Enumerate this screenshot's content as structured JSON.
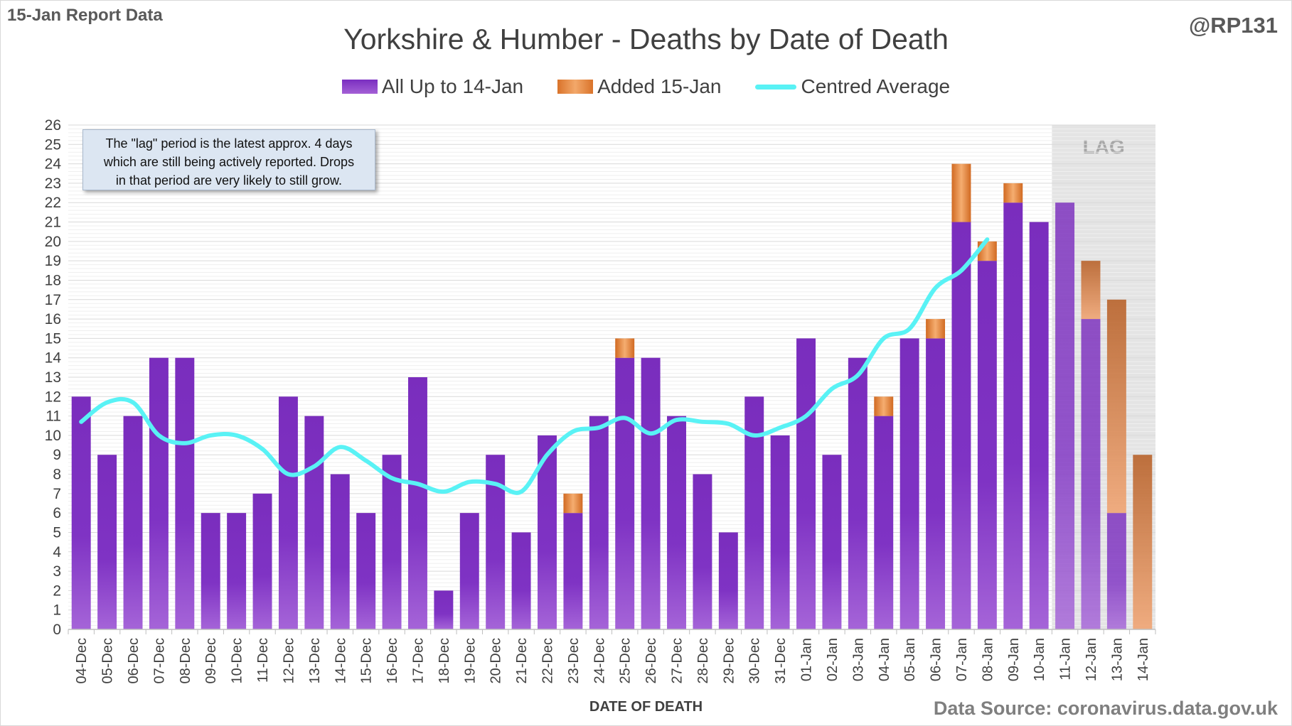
{
  "header": {
    "report_label": "15-Jan Report Data",
    "handle": "@RP131"
  },
  "note": {
    "line1": "The \"lag\" period is the latest approx. 4 days",
    "line2": "which are still being actively reported.  Drops",
    "line3": "in that period are very likely to still grow."
  },
  "footer": {
    "source": "Data Source: coronavirus.data.gov.uk"
  },
  "colors": {
    "all_up_to": "#7a2ec0",
    "added": "#e07b30",
    "average": "#59f2f5",
    "lag_shade": "#d9d9d9"
  },
  "chart_data": {
    "type": "bar",
    "title": "Yorkshire & Humber - Deaths by Date of Death",
    "xlabel": "DATE OF DEATH",
    "ylabel": "",
    "ylim": [
      0,
      26
    ],
    "yticks": [
      0,
      1,
      2,
      3,
      4,
      5,
      6,
      7,
      8,
      9,
      10,
      11,
      12,
      13,
      14,
      15,
      16,
      17,
      18,
      19,
      20,
      21,
      22,
      23,
      24,
      25,
      26
    ],
    "stacked": true,
    "grid": true,
    "legend_position": "top",
    "lag_label": "LAG",
    "lag_categories": [
      "11-Jan",
      "12-Jan",
      "13-Jan",
      "14-Jan"
    ],
    "categories": [
      "04-Dec",
      "05-Dec",
      "06-Dec",
      "07-Dec",
      "08-Dec",
      "09-Dec",
      "10-Dec",
      "11-Dec",
      "12-Dec",
      "13-Dec",
      "14-Dec",
      "15-Dec",
      "16-Dec",
      "17-Dec",
      "18-Dec",
      "19-Dec",
      "20-Dec",
      "21-Dec",
      "22-Dec",
      "23-Dec",
      "24-Dec",
      "25-Dec",
      "26-Dec",
      "27-Dec",
      "28-Dec",
      "29-Dec",
      "30-Dec",
      "31-Dec",
      "01-Jan",
      "02-Jan",
      "03-Jan",
      "04-Jan",
      "05-Jan",
      "06-Jan",
      "07-Jan",
      "08-Jan",
      "09-Jan",
      "10-Jan",
      "11-Jan",
      "12-Jan",
      "13-Jan",
      "14-Jan"
    ],
    "series": [
      {
        "name": "All Up to 14-Jan",
        "values": [
          12,
          9,
          11,
          14,
          14,
          6,
          6,
          7,
          12,
          11,
          8,
          6,
          9,
          13,
          2,
          6,
          9,
          5,
          10,
          6,
          11,
          14,
          14,
          11,
          8,
          5,
          12,
          10,
          15,
          9,
          14,
          11,
          15,
          15,
          21,
          19,
          22,
          21,
          22,
          16,
          6,
          0
        ]
      },
      {
        "name": "Added 15-Jan",
        "values": [
          0,
          0,
          0,
          0,
          0,
          0,
          0,
          0,
          0,
          0,
          0,
          0,
          0,
          0,
          0,
          0,
          0,
          0,
          0,
          1,
          0,
          1,
          0,
          0,
          0,
          0,
          0,
          0,
          0,
          0,
          0,
          1,
          0,
          1,
          3,
          1,
          1,
          0,
          0,
          3,
          11,
          9
        ]
      },
      {
        "name": "Centred Average",
        "type": "line",
        "values": [
          10.7,
          11.7,
          11.7,
          10.0,
          9.6,
          10.0,
          10.0,
          9.3,
          8.0,
          8.4,
          9.4,
          8.7,
          7.8,
          7.5,
          7.1,
          7.6,
          7.5,
          7.1,
          9.0,
          10.2,
          10.4,
          10.9,
          10.1,
          10.8,
          10.7,
          10.6,
          10.0,
          10.4,
          11.0,
          12.4,
          13.1,
          15.0,
          15.5,
          17.6,
          18.5,
          20.1,
          null,
          null,
          null,
          null,
          null,
          null
        ]
      }
    ]
  }
}
